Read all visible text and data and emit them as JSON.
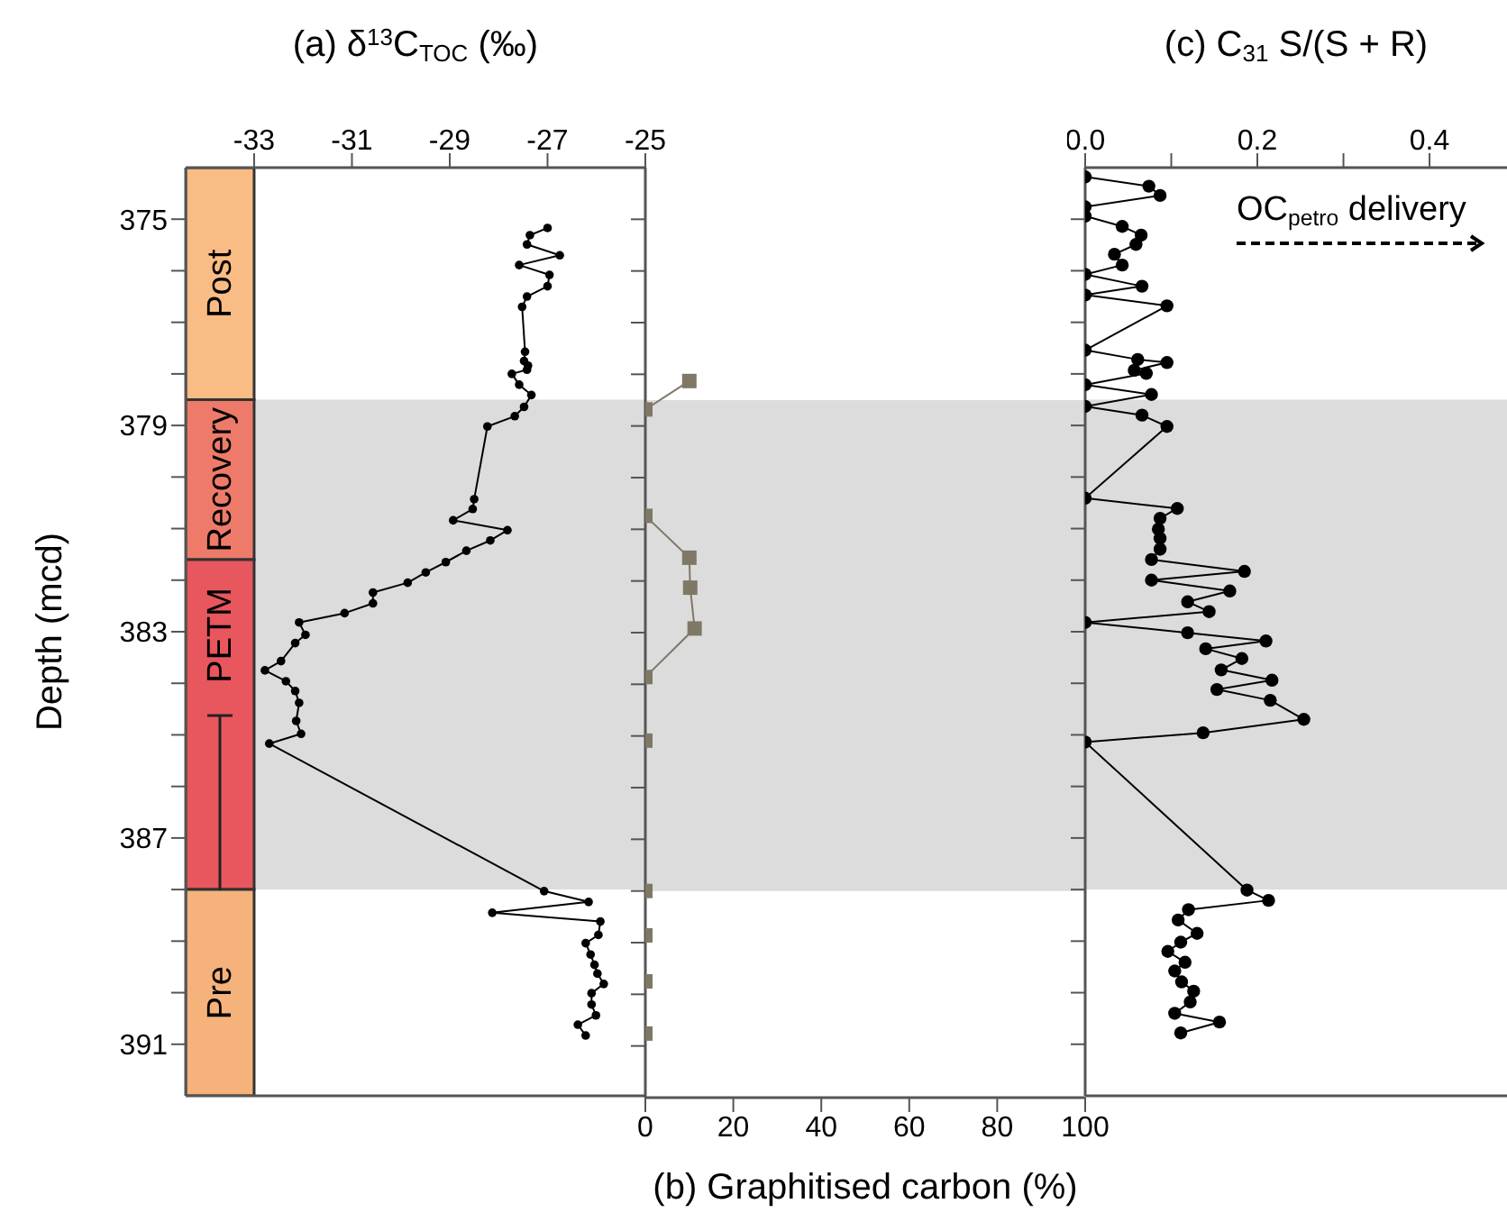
{
  "chart_data": [
    {
      "type": "line",
      "orientation": "horizontal",
      "xlabel": "(a) δ$^{13}$C$_{TOC}$ (‰)",
      "ylabel": "Depth (mcd)",
      "color": "#000000",
      "marker": "circle",
      "x": [
        375.17,
        375.31,
        375.49,
        375.7,
        375.89,
        376.08,
        376.3,
        376.5,
        376.7,
        377.57,
        377.75,
        377.84,
        377.92,
        378.0,
        378.21,
        378.41,
        378.64,
        378.82,
        379.02,
        380.43,
        380.62,
        380.84,
        381.03,
        381.23,
        381.43,
        381.65,
        381.85,
        382.05,
        382.24,
        382.45,
        382.64,
        382.82,
        383.06,
        383.22,
        383.57,
        383.75,
        383.96,
        384.15,
        384.38,
        384.73,
        384.98,
        385.17,
        386.5,
        388.03,
        388.24,
        388.45,
        388.62,
        388.88,
        389.04,
        389.26,
        389.46,
        389.63,
        389.83,
        390.01,
        390.23,
        390.44,
        390.62,
        390.83
      ],
      "values": [
        -27.0,
        -27.36,
        -27.42,
        -26.75,
        -27.58,
        -26.96,
        -27.0,
        -27.42,
        -27.52,
        -27.46,
        -27.48,
        -27.4,
        -27.42,
        -27.73,
        -27.58,
        -27.33,
        -27.48,
        -27.67,
        -28.23,
        -28.5,
        -28.53,
        -28.93,
        -27.82,
        -28.17,
        -28.66,
        -29.08,
        -29.49,
        -29.86,
        -30.57,
        -30.57,
        -31.15,
        -32.08,
        -31.95,
        -32.16,
        -32.45,
        -32.78,
        -32.35,
        -32.16,
        -32.08,
        -32.14,
        -32.04,
        -32.69,
        null,
        -27.07,
        -26.16,
        -28.13,
        -25.92,
        -25.96,
        -26.22,
        -26.12,
        -26.04,
        -25.98,
        -25.85,
        -26.1,
        -26.1,
        -26.01,
        -26.38,
        -26.22
      ],
      "xlim": [
        -34.4,
        -25
      ],
      "xticks": [
        -33,
        -31,
        -29,
        -27,
        -25
      ],
      "ylim": [
        392,
        374
      ],
      "yticks": [
        375,
        {
          "value": 376,
          "label": null
        },
        {
          "value": 377,
          "label": null
        },
        {
          "value": 378,
          "label": null
        },
        379,
        {
          "value": 380,
          "label": null
        },
        {
          "value": 381,
          "label": null
        },
        {
          "value": 382,
          "label": null
        },
        383,
        {
          "value": 384,
          "label": null
        },
        {
          "value": 385,
          "label": null
        },
        {
          "value": 386,
          "label": null
        },
        387,
        {
          "value": 388,
          "label": null
        },
        {
          "value": 389,
          "label": null
        },
        {
          "value": 390,
          "label": null
        },
        391
      ],
      "bands": [
        {
          "axis": "y",
          "from": 378.5,
          "to": 388.0,
          "color": "#dcdcdc"
        },
        {
          "axis": "y",
          "from": 374,
          "to": 378.5,
          "label": "Post",
          "color": "#f9bc84"
        },
        {
          "axis": "y",
          "from": 378.5,
          "to": 381.6,
          "label": "Recovery",
          "color": "#ee7b6a"
        },
        {
          "axis": "y",
          "from": 381.6,
          "to": 388.0,
          "label": "PETM",
          "color": "#e8565e"
        },
        {
          "axis": "y",
          "from": 388.0,
          "to": 392,
          "label": "Pre",
          "color": "#f5b27b"
        }
      ]
    },
    {
      "type": "line",
      "orientation": "horizontal",
      "xlabel": "(b) Graphitised carbon (%)",
      "color": "#7f7866",
      "marker": "square",
      "tick_labels": "x",
      "x": [
        378.13,
        378.68,
        380.74,
        381.55,
        382.13,
        382.92,
        383.86,
        385.09,
        388.0,
        388.86,
        389.75,
        390.76
      ],
      "values": [
        10.0,
        0,
        0,
        10.0,
        10.2,
        11.2,
        0,
        0,
        0,
        0,
        0,
        0
      ],
      "xlim": [
        0,
        100
      ],
      "xticks": [
        0,
        20,
        40,
        60,
        80,
        100
      ],
      "ylim": [
        392,
        374
      ],
      "yticks": [
        375,
        {
          "value": 376,
          "label": null
        },
        {
          "value": 377,
          "label": null
        },
        {
          "value": 378,
          "label": null
        },
        379,
        {
          "value": 380,
          "label": null
        },
        {
          "value": 381,
          "label": null
        },
        {
          "value": 382,
          "label": null
        },
        383,
        {
          "value": 384,
          "label": null
        },
        {
          "value": 385,
          "label": null
        },
        {
          "value": 386,
          "label": null
        },
        387,
        {
          "value": 388,
          "label": null
        },
        {
          "value": 389,
          "label": null
        },
        {
          "value": 390,
          "label": null
        },
        391
      ],
      "bands": [
        {
          "axis": "y",
          "from": 378.5,
          "to": 388.0,
          "color": "#dcdcdc"
        }
      ]
    },
    {
      "type": "line",
      "orientation": "horizontal",
      "xlabel": "(c) C$_{31}$ S/(S + R)",
      "color": "#000000",
      "marker": "circle",
      "tick_labels": "x",
      "x": [
        374.18,
        374.36,
        374.54,
        374.76,
        374.94,
        375.14,
        375.31,
        375.49,
        375.68,
        375.89,
        376.07,
        376.3,
        376.47,
        376.68,
        377.54,
        377.72,
        377.78,
        377.93,
        377.99,
        378.21,
        378.4,
        378.63,
        378.8,
        379.02,
        380.41,
        380.61,
        380.8,
        381.01,
        381.19,
        381.4,
        381.6,
        381.83,
        382.0,
        382.21,
        382.42,
        382.61,
        382.82,
        383.02,
        383.18,
        383.33,
        383.52,
        383.74,
        383.94,
        384.12,
        384.33,
        384.7,
        384.96,
        385.14,
        386.5,
        388.01,
        388.21,
        388.39,
        388.59,
        388.85,
        389.02,
        389.2,
        389.41,
        389.58,
        389.79,
        389.97,
        390.18,
        390.4,
        390.57,
        390.78
      ],
      "values": [
        0,
        0.074,
        0.087,
        0,
        0,
        0.043,
        0.065,
        0.059,
        0.034,
        0.043,
        0,
        0.066,
        0,
        0.095,
        0,
        0.061,
        0.095,
        0.057,
        0.071,
        0,
        0.077,
        0,
        0.066,
        0.095,
        0,
        0.107,
        0.087,
        0.085,
        0.087,
        0.087,
        0.077,
        0.185,
        0.077,
        0.168,
        0.119,
        0.144,
        0,
        0.119,
        0.21,
        0.14,
        0.182,
        0.158,
        0.217,
        0.153,
        0.215,
        0.254,
        0.137,
        0,
        null,
        0.188,
        0.213,
        0.12,
        0.108,
        0.13,
        0.111,
        0.096,
        0.116,
        0.104,
        0.112,
        0.126,
        0.122,
        0.104,
        0.156,
        0.111
      ],
      "xlim": [
        0,
        0.49
      ],
      "xticks": [
        {
          "value": 0,
          "label": "0.0"
        },
        {
          "value": 0.1,
          "label": null
        },
        {
          "value": 0.2,
          "label": "0.2"
        },
        {
          "value": 0.3,
          "label": null
        },
        {
          "value": 0.4,
          "label": "0.4"
        }
      ],
      "ylim": [
        392,
        374
      ],
      "yticks": [
        375,
        {
          "value": 376,
          "label": null
        },
        {
          "value": 377,
          "label": null
        },
        {
          "value": 378,
          "label": null
        },
        379,
        {
          "value": 380,
          "label": null
        },
        {
          "value": 381,
          "label": null
        },
        {
          "value": 382,
          "label": null
        },
        383,
        {
          "value": 384,
          "label": null
        },
        {
          "value": 385,
          "label": null
        },
        {
          "value": 386,
          "label": null
        },
        387,
        {
          "value": 388,
          "label": null
        },
        {
          "value": 389,
          "label": null
        },
        {
          "value": 390,
          "label": null
        },
        391
      ],
      "bands": [
        {
          "axis": "y",
          "from": 378.5,
          "to": 388.0,
          "color": "#dcdcdc"
        }
      ],
      "annotations": [
        "OC$_{petro}$ delivery"
      ]
    }
  ]
}
